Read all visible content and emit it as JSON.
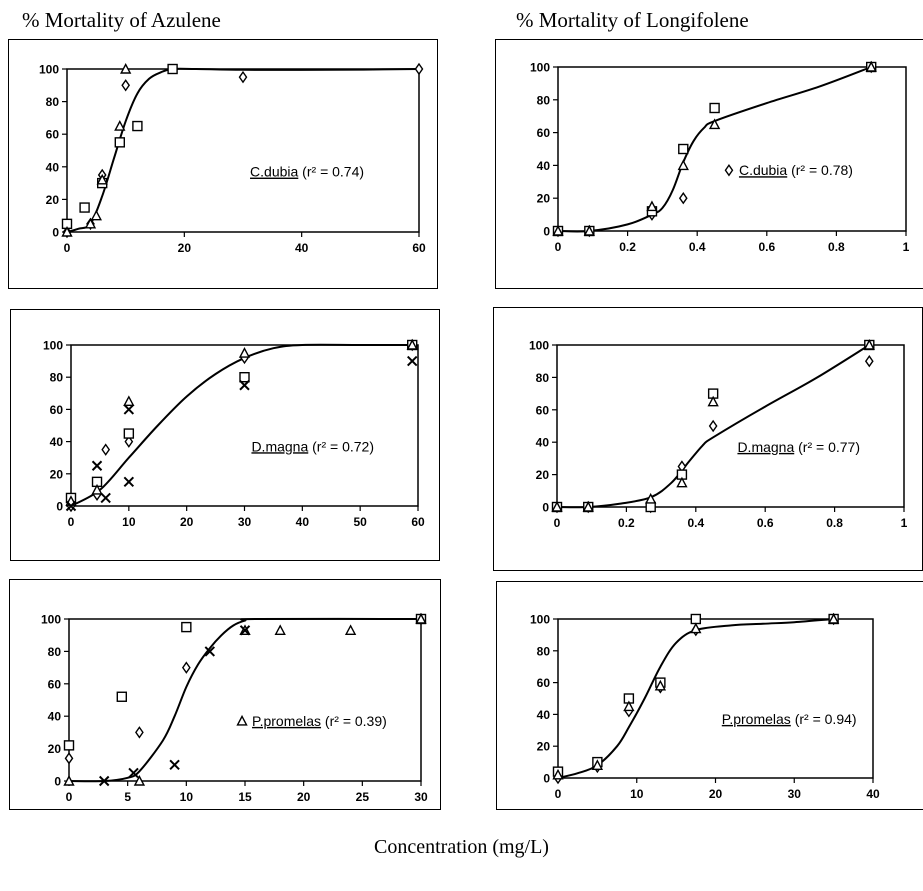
{
  "titles": {
    "left": "% Mortality of Azulene",
    "right": "% Mortality of Longifolene"
  },
  "xcaption": "Concentration   (mg/L)",
  "chart_data": [
    {
      "type": "scatter",
      "title": "",
      "annotation": {
        "species": "C.dubia",
        "prefix": "",
        "stat": " (r² = 0.74)",
        "marker": ""
      },
      "xlim": [
        0,
        60
      ],
      "ylim": [
        0,
        100
      ],
      "xticks": [
        "0",
        "20",
        "40",
        "60"
      ],
      "yticks": [
        "0",
        "20",
        "40",
        "60",
        "80",
        "100"
      ],
      "fit": [
        [
          0,
          0
        ],
        [
          2,
          2
        ],
        [
          4,
          5
        ],
        [
          6,
          22
        ],
        [
          8,
          45
        ],
        [
          10,
          68
        ],
        [
          12,
          85
        ],
        [
          14,
          94
        ],
        [
          16,
          98
        ],
        [
          18,
          100
        ],
        [
          22,
          100
        ],
        [
          30,
          99.5
        ],
        [
          45,
          99.5
        ],
        [
          60,
          100
        ]
      ],
      "series": [
        {
          "marker": "diamond",
          "points": [
            [
              0,
              0
            ],
            [
              4,
              5
            ],
            [
              6,
              35
            ],
            [
              10,
              90
            ],
            [
              30,
              95
            ],
            [
              60,
              100
            ]
          ]
        },
        {
          "marker": "square",
          "points": [
            [
              0,
              5
            ],
            [
              3,
              15
            ],
            [
              6,
              30
            ],
            [
              9,
              55
            ],
            [
              12,
              65
            ],
            [
              18,
              100
            ]
          ]
        },
        {
          "marker": "triangle",
          "points": [
            [
              0,
              0
            ],
            [
              4,
              5
            ],
            [
              5,
              10
            ],
            [
              6,
              32
            ],
            [
              9,
              65
            ],
            [
              10,
              100
            ]
          ]
        }
      ]
    },
    {
      "type": "scatter",
      "title": "",
      "annotation": {
        "species": "C.dubia",
        "prefix": "",
        "stat": " (r² = 0.78)",
        "marker": "diamond"
      },
      "xlim": [
        0,
        1
      ],
      "ylim": [
        0,
        100
      ],
      "xticks": [
        "0",
        "0.2",
        "0.4",
        "0.6",
        "0.8",
        "1"
      ],
      "yticks": [
        "0",
        "20",
        "40",
        "60",
        "80",
        "100"
      ],
      "fit": [
        [
          0,
          0
        ],
        [
          0.09,
          0
        ],
        [
          0.2,
          4
        ],
        [
          0.27,
          10
        ],
        [
          0.3,
          14
        ],
        [
          0.33,
          25
        ],
        [
          0.36,
          42
        ],
        [
          0.39,
          55
        ],
        [
          0.42,
          63
        ],
        [
          0.45,
          67
        ],
        [
          0.6,
          78
        ],
        [
          0.75,
          88
        ],
        [
          0.9,
          100
        ]
      ],
      "series": [
        {
          "marker": "diamond",
          "points": [
            [
              0,
              0
            ],
            [
              0.09,
              0
            ],
            [
              0.27,
              10
            ],
            [
              0.36,
              20
            ],
            [
              0.9,
              100
            ]
          ]
        },
        {
          "marker": "square",
          "points": [
            [
              0,
              0
            ],
            [
              0.09,
              0
            ],
            [
              0.27,
              12
            ],
            [
              0.36,
              50
            ],
            [
              0.45,
              75
            ],
            [
              0.9,
              100
            ]
          ]
        },
        {
          "marker": "triangle",
          "points": [
            [
              0,
              0
            ],
            [
              0.09,
              0
            ],
            [
              0.27,
              15
            ],
            [
              0.36,
              40
            ],
            [
              0.45,
              65
            ],
            [
              0.9,
              100
            ]
          ]
        }
      ]
    },
    {
      "type": "scatter",
      "title": "",
      "annotation": {
        "species": "D.magna",
        "prefix": "",
        "stat": " (r² = 0.72)",
        "marker": ""
      },
      "xlim": [
        0,
        60
      ],
      "ylim": [
        0,
        100
      ],
      "xticks": [
        "0",
        "10",
        "20",
        "30",
        "40",
        "50",
        "60"
      ],
      "yticks": [
        "0",
        "20",
        "40",
        "60",
        "80",
        "100"
      ],
      "fit": [
        [
          0,
          0
        ],
        [
          5,
          10
        ],
        [
          10,
          30
        ],
        [
          15,
          50
        ],
        [
          20,
          68
        ],
        [
          25,
          82
        ],
        [
          30,
          92
        ],
        [
          35,
          98
        ],
        [
          40,
          100
        ],
        [
          50,
          100
        ],
        [
          59,
          100
        ]
      ],
      "series": [
        {
          "marker": "diamond",
          "points": [
            [
              0,
              0
            ],
            [
              4.5,
              7
            ],
            [
              6,
              35
            ],
            [
              10,
              40
            ],
            [
              30,
              92
            ],
            [
              59,
              100
            ]
          ]
        },
        {
          "marker": "square",
          "points": [
            [
              0,
              5
            ],
            [
              4.5,
              15
            ],
            [
              10,
              45
            ],
            [
              30,
              80
            ],
            [
              59,
              100
            ]
          ]
        },
        {
          "marker": "triangle",
          "points": [
            [
              0,
              3
            ],
            [
              4.5,
              10
            ],
            [
              10,
              65
            ],
            [
              30,
              95
            ],
            [
              59,
              100
            ]
          ]
        },
        {
          "marker": "cross",
          "points": [
            [
              0,
              0
            ],
            [
              4.5,
              25
            ],
            [
              6,
              5
            ],
            [
              10,
              60
            ],
            [
              10,
              15
            ],
            [
              30,
              75
            ],
            [
              59,
              90
            ]
          ]
        }
      ]
    },
    {
      "type": "scatter",
      "title": "",
      "annotation": {
        "species": "D.magna",
        "prefix": "",
        "stat": " (r² = 0.77)",
        "marker": ""
      },
      "xlim": [
        0,
        1
      ],
      "ylim": [
        0,
        100
      ],
      "xticks": [
        "0",
        "0.2",
        "0.4",
        "0.6",
        "0.8",
        "1"
      ],
      "yticks": [
        "0",
        "20",
        "40",
        "60",
        "80",
        "100"
      ],
      "fit": [
        [
          0,
          0
        ],
        [
          0.09,
          0
        ],
        [
          0.18,
          2
        ],
        [
          0.27,
          6
        ],
        [
          0.33,
          15
        ],
        [
          0.38,
          28
        ],
        [
          0.42,
          38
        ],
        [
          0.45,
          43
        ],
        [
          0.6,
          62
        ],
        [
          0.75,
          80
        ],
        [
          0.9,
          100
        ]
      ],
      "series": [
        {
          "marker": "diamond",
          "points": [
            [
              0,
              0
            ],
            [
              0.09,
              0
            ],
            [
              0.27,
              0
            ],
            [
              0.36,
              25
            ],
            [
              0.45,
              50
            ],
            [
              0.9,
              90
            ]
          ]
        },
        {
          "marker": "square",
          "points": [
            [
              0,
              0
            ],
            [
              0.09,
              0
            ],
            [
              0.27,
              0
            ],
            [
              0.36,
              20
            ],
            [
              0.45,
              70
            ],
            [
              0.9,
              100
            ]
          ]
        },
        {
          "marker": "triangle",
          "points": [
            [
              0,
              0
            ],
            [
              0.09,
              0
            ],
            [
              0.27,
              5
            ],
            [
              0.36,
              15
            ],
            [
              0.45,
              65
            ],
            [
              0.9,
              100
            ]
          ]
        }
      ]
    },
    {
      "type": "scatter",
      "title": "",
      "annotation": {
        "species": "P.promelas",
        "prefix": "",
        "stat": " (r² = 0.39)",
        "marker": "triangle"
      },
      "xlim": [
        0,
        30
      ],
      "ylim": [
        0,
        100
      ],
      "xticks": [
        "0",
        "5",
        "10",
        "15",
        "20",
        "25",
        "30"
      ],
      "yticks": [
        "0",
        "20",
        "40",
        "60",
        "80",
        "100"
      ],
      "fit": [
        [
          0,
          0
        ],
        [
          3,
          0
        ],
        [
          5,
          2
        ],
        [
          6,
          6
        ],
        [
          8,
          25
        ],
        [
          9,
          40
        ],
        [
          10,
          58
        ],
        [
          11,
          72
        ],
        [
          12,
          82
        ],
        [
          13,
          90
        ],
        [
          14,
          96
        ],
        [
          15,
          99
        ],
        [
          16,
          100
        ],
        [
          30,
          100
        ]
      ],
      "series": [
        {
          "marker": "diamond",
          "points": [
            [
              0,
              14
            ],
            [
              6,
              30
            ],
            [
              10,
              70
            ],
            [
              30,
              100
            ]
          ]
        },
        {
          "marker": "square",
          "points": [
            [
              0,
              22
            ],
            [
              4.5,
              52
            ],
            [
              10,
              95
            ],
            [
              30,
              100
            ]
          ]
        },
        {
          "marker": "triangle",
          "points": [
            [
              0,
              0
            ],
            [
              6,
              0
            ],
            [
              15,
              93
            ],
            [
              18,
              93
            ],
            [
              24,
              93
            ],
            [
              30,
              100
            ]
          ]
        },
        {
          "marker": "cross",
          "points": [
            [
              3,
              0
            ],
            [
              5.5,
              5
            ],
            [
              9,
              10
            ],
            [
              12,
              80
            ],
            [
              15,
              93
            ]
          ]
        }
      ]
    },
    {
      "type": "scatter",
      "title": "",
      "annotation": {
        "species": "P.promelas",
        "prefix": "",
        "stat": " (r² = 0.94)",
        "marker": ""
      },
      "xlim": [
        0,
        40
      ],
      "ylim": [
        0,
        100
      ],
      "xticks": [
        "0",
        "10",
        "20",
        "30",
        "40"
      ],
      "yticks": [
        "0",
        "20",
        "40",
        "60",
        "80",
        "100"
      ],
      "fit": [
        [
          0,
          0
        ],
        [
          2.5,
          3
        ],
        [
          5,
          8
        ],
        [
          7.5,
          20
        ],
        [
          9,
          32
        ],
        [
          11,
          50
        ],
        [
          13,
          70
        ],
        [
          15,
          85
        ],
        [
          17.5,
          93
        ],
        [
          22,
          96
        ],
        [
          26,
          97
        ],
        [
          30,
          98
        ],
        [
          35,
          100
        ]
      ],
      "series": [
        {
          "marker": "diamond",
          "points": [
            [
              0,
              0
            ],
            [
              5,
              7
            ],
            [
              9,
              42
            ],
            [
              13,
              57
            ],
            [
              17.5,
              93
            ],
            [
              35,
              100
            ]
          ]
        },
        {
          "marker": "square",
          "points": [
            [
              0,
              4
            ],
            [
              5,
              10
            ],
            [
              9,
              50
            ],
            [
              13,
              60
            ],
            [
              17.5,
              100
            ],
            [
              35,
              100
            ]
          ]
        },
        {
          "marker": "triangle",
          "points": [
            [
              0,
              2
            ],
            [
              5,
              8
            ],
            [
              9,
              45
            ],
            [
              13,
              58
            ],
            [
              17.5,
              94
            ],
            [
              35,
              100
            ]
          ]
        }
      ]
    }
  ]
}
